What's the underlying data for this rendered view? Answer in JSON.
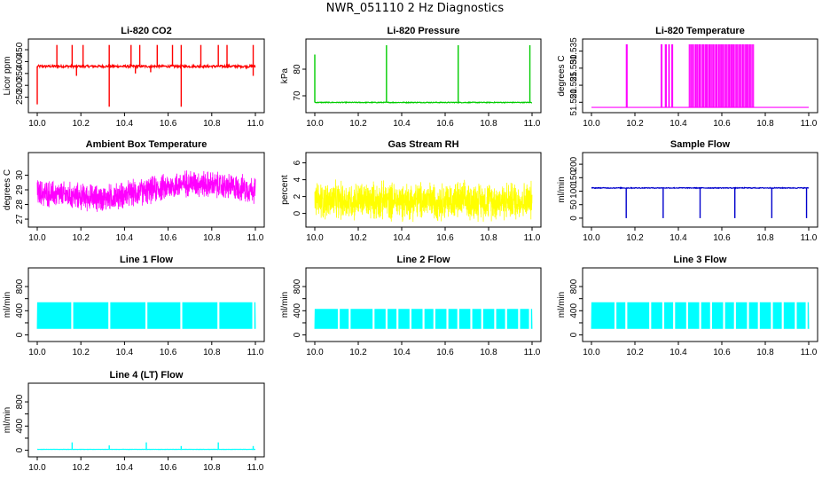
{
  "page_title": "NWR_051110  2 Hz Diagnostics",
  "chart_data": [
    {
      "id": "li820-co2",
      "type": "line",
      "title": "Li-820 CO2",
      "xlabel": "",
      "ylabel": "Licor ppm",
      "color": "#ff0000",
      "xlim": [
        10.0,
        11.0
      ],
      "ylim": [
        200,
        480
      ],
      "xticks": [
        10.0,
        10.2,
        10.4,
        10.6,
        10.8,
        11.0
      ],
      "xtick_labels": [
        "10.0",
        "10.2",
        "10.4",
        "10.6",
        "10.8",
        "11.0"
      ],
      "yticks": [
        250,
        300,
        350,
        400,
        450
      ],
      "ytick_labels": [
        "250",
        "300",
        "350",
        "400",
        "450"
      ],
      "signal": {
        "pattern": "baseline_spikes",
        "baseline": 380,
        "noise": 5,
        "up_spikes": [
          [
            10.09,
            470
          ],
          [
            10.16,
            470
          ],
          [
            10.21,
            470
          ],
          [
            10.33,
            470
          ],
          [
            10.43,
            470
          ],
          [
            10.47,
            470
          ],
          [
            10.55,
            470
          ],
          [
            10.62,
            470
          ],
          [
            10.66,
            470
          ],
          [
            10.75,
            470
          ],
          [
            10.83,
            470
          ],
          [
            10.87,
            470
          ],
          [
            10.99,
            470
          ]
        ],
        "down_spikes": [
          [
            10.0,
            220
          ],
          [
            10.33,
            210
          ],
          [
            10.66,
            210
          ],
          [
            10.18,
            340
          ],
          [
            10.45,
            350
          ],
          [
            10.52,
            355
          ],
          [
            10.99,
            340
          ]
        ]
      }
    },
    {
      "id": "li820-pressure",
      "type": "line",
      "title": "Li-820 Pressure",
      "xlabel": "",
      "ylabel": "kPa",
      "color": "#00cc00",
      "xlim": [
        10.0,
        11.0
      ],
      "ylim": [
        65,
        90
      ],
      "xticks": [
        10.0,
        10.2,
        10.4,
        10.6,
        10.8,
        11.0
      ],
      "xtick_labels": [
        "10.0",
        "10.2",
        "10.4",
        "10.6",
        "10.8",
        "11.0"
      ],
      "yticks": [
        70,
        80
      ],
      "ytick_labels": [
        "70",
        "80"
      ],
      "signal": {
        "pattern": "baseline_spikes",
        "baseline": 67.5,
        "noise": 0.15,
        "up_spikes": [
          [
            10.0,
            85.5
          ],
          [
            10.33,
            89
          ],
          [
            10.66,
            89
          ],
          [
            10.99,
            89
          ]
        ],
        "down_spikes": []
      }
    },
    {
      "id": "li820-temperature",
      "type": "line",
      "title": "Li-820 Temperature",
      "xlabel": "",
      "ylabel": "degrees C",
      "color": "#ff00ff",
      "xlim": [
        10.0,
        11.0
      ],
      "ylim": [
        51.518,
        51.5375
      ],
      "xticks": [
        10.0,
        10.2,
        10.4,
        10.6,
        10.8,
        11.0
      ],
      "xtick_labels": [
        "10.0",
        "10.2",
        "10.4",
        "10.6",
        "10.8",
        "11.0"
      ],
      "yticks": [
        51.52,
        51.525,
        51.53,
        51.535
      ],
      "ytick_labels": [
        "51.520",
        "51.525",
        "51.530",
        "51.535"
      ],
      "signal": {
        "pattern": "two_level",
        "low": 51.5185,
        "high": 51.537,
        "bursts": [
          [
            10.16,
            10.165
          ],
          [
            10.32,
            10.325
          ],
          [
            10.34,
            10.345
          ],
          [
            10.355,
            10.36
          ],
          [
            10.37,
            10.375
          ],
          [
            10.45,
            10.75
          ]
        ]
      }
    },
    {
      "id": "ambient-box-temperature",
      "type": "line",
      "title": "Ambient Box Temperature",
      "xlabel": "",
      "ylabel": "degrees C",
      "color": "#ff00ff",
      "xlim": [
        10.0,
        11.0
      ],
      "ylim": [
        26.7,
        31.3
      ],
      "xticks": [
        10.0,
        10.2,
        10.4,
        10.6,
        10.8,
        11.0
      ],
      "xtick_labels": [
        "10.0",
        "10.2",
        "10.4",
        "10.6",
        "10.8",
        "11.0"
      ],
      "yticks": [
        27,
        28,
        29,
        30
      ],
      "ytick_labels": [
        "27",
        "28",
        "29",
        "30"
      ],
      "signal": {
        "pattern": "noisy_band",
        "center": [
          [
            10.0,
            28.8
          ],
          [
            10.3,
            28.4
          ],
          [
            10.5,
            28.9
          ],
          [
            10.7,
            29.5
          ],
          [
            11.0,
            29.0
          ]
        ],
        "amplitude": 0.9
      }
    },
    {
      "id": "gas-stream-rh",
      "type": "line",
      "title": "Gas Stream RH",
      "xlabel": "",
      "ylabel": "percent",
      "color": "#ffff00",
      "xlim": [
        10.0,
        11.0
      ],
      "ylim": [
        -1.2,
        6.8
      ],
      "xticks": [
        10.0,
        10.2,
        10.4,
        10.6,
        10.8,
        11.0
      ],
      "xtick_labels": [
        "10.0",
        "10.2",
        "10.4",
        "10.6",
        "10.8",
        "11.0"
      ],
      "yticks": [
        0,
        2,
        4,
        6
      ],
      "ytick_labels": [
        "0",
        "2",
        "4",
        "6"
      ],
      "signal": {
        "pattern": "noisy_band",
        "center": [
          [
            10.0,
            1.5
          ],
          [
            11.0,
            1.5
          ]
        ],
        "amplitude": 2.2
      }
    },
    {
      "id": "sample-flow",
      "type": "line",
      "title": "Sample Flow",
      "xlabel": "",
      "ylabel": "ml/min",
      "color": "#0000cc",
      "xlim": [
        10.0,
        11.0
      ],
      "ylim": [
        -20,
        230
      ],
      "xticks": [
        10.0,
        10.2,
        10.4,
        10.6,
        10.8,
        11.0
      ],
      "xtick_labels": [
        "10.0",
        "10.2",
        "10.4",
        "10.6",
        "10.8",
        "11.0"
      ],
      "yticks": [
        0,
        50,
        100,
        150,
        200
      ],
      "ytick_labels": [
        "0",
        "50",
        "100",
        "150",
        "200"
      ],
      "signal": {
        "pattern": "baseline_spikes",
        "baseline": 112,
        "noise": 1.5,
        "up_spikes": [],
        "down_spikes": [
          [
            10.16,
            0
          ],
          [
            10.33,
            0
          ],
          [
            10.5,
            0
          ],
          [
            10.66,
            0
          ],
          [
            10.83,
            0
          ],
          [
            10.99,
            0
          ]
        ]
      }
    },
    {
      "id": "line-1-flow",
      "type": "line",
      "title": "Line 1 Flow",
      "xlabel": "",
      "ylabel": "ml/min",
      "color": "#00ffff",
      "xlim": [
        10.0,
        11.0
      ],
      "ylim": [
        -50,
        1050
      ],
      "xticks": [
        10.0,
        10.2,
        10.4,
        10.6,
        10.8,
        11.0
      ],
      "xtick_labels": [
        "10.0",
        "10.2",
        "10.4",
        "10.6",
        "10.8",
        "11.0"
      ],
      "yticks": [
        0,
        200,
        400,
        600,
        800
      ],
      "ytick_labels": [
        "0",
        "400",
        "800"
      ],
      "ytick_label_values": [
        0,
        400,
        800
      ],
      "signal": {
        "pattern": "square_band",
        "low": 100,
        "high": 540,
        "gaps": [
          10.16,
          10.33,
          10.5,
          10.66,
          10.83,
          10.99
        ]
      }
    },
    {
      "id": "line-2-flow",
      "type": "line",
      "title": "Line 2 Flow",
      "xlabel": "",
      "ylabel": "ml/min",
      "color": "#00ffff",
      "xlim": [
        10.0,
        11.0
      ],
      "ylim": [
        -50,
        1050
      ],
      "xticks": [
        10.0,
        10.2,
        10.4,
        10.6,
        10.8,
        11.0
      ],
      "xtick_labels": [
        "10.0",
        "10.2",
        "10.4",
        "10.6",
        "10.8",
        "11.0"
      ],
      "yticks": [
        0,
        200,
        400,
        600,
        800
      ],
      "ytick_labels": [
        "0",
        "400",
        "800"
      ],
      "ytick_label_values": [
        0,
        400,
        800
      ],
      "signal": {
        "pattern": "square_band",
        "low": 100,
        "high": 430,
        "gaps": [
          10.11,
          10.16,
          10.27,
          10.33,
          10.38,
          10.44,
          10.5,
          10.55,
          10.61,
          10.66,
          10.72,
          10.77,
          10.83,
          10.88,
          10.94,
          10.99
        ]
      }
    },
    {
      "id": "line-3-flow",
      "type": "line",
      "title": "Line 3 Flow",
      "xlabel": "",
      "ylabel": "ml/min",
      "color": "#00ffff",
      "xlim": [
        10.0,
        11.0
      ],
      "ylim": [
        -50,
        1050
      ],
      "xticks": [
        10.0,
        10.2,
        10.4,
        10.6,
        10.8,
        11.0
      ],
      "xtick_labels": [
        "10.0",
        "10.2",
        "10.4",
        "10.6",
        "10.8",
        "11.0"
      ],
      "yticks": [
        0,
        200,
        400,
        600,
        800
      ],
      "ytick_labels": [
        "0",
        "400",
        "800"
      ],
      "ytick_label_values": [
        0,
        400,
        800
      ],
      "signal": {
        "pattern": "square_band",
        "low": 100,
        "high": 540,
        "gaps": [
          10.11,
          10.16,
          10.27,
          10.33,
          10.38,
          10.44,
          10.5,
          10.55,
          10.61,
          10.66,
          10.72,
          10.77,
          10.83,
          10.88,
          10.94,
          10.99
        ]
      }
    },
    {
      "id": "line-4-lt-flow",
      "type": "line",
      "title": "Line 4 (LT) Flow",
      "xlabel": "",
      "ylabel": "ml/min",
      "color": "#00ffff",
      "xlim": [
        10.0,
        11.0
      ],
      "ylim": [
        -50,
        1050
      ],
      "xticks": [
        10.0,
        10.2,
        10.4,
        10.6,
        10.8,
        11.0
      ],
      "xtick_labels": [
        "10.0",
        "10.2",
        "10.4",
        "10.6",
        "10.8",
        "11.0"
      ],
      "yticks": [
        0,
        200,
        400,
        600,
        800
      ],
      "ytick_labels": [
        "0",
        "400",
        "800"
      ],
      "ytick_label_values": [
        0,
        400,
        800
      ],
      "signal": {
        "pattern": "baseline_spikes",
        "baseline": 15,
        "noise": 1,
        "up_spikes": [
          [
            10.16,
            130
          ],
          [
            10.33,
            80
          ],
          [
            10.5,
            130
          ],
          [
            10.66,
            70
          ],
          [
            10.83,
            130
          ],
          [
            10.99,
            70
          ]
        ],
        "down_spikes": []
      }
    }
  ]
}
